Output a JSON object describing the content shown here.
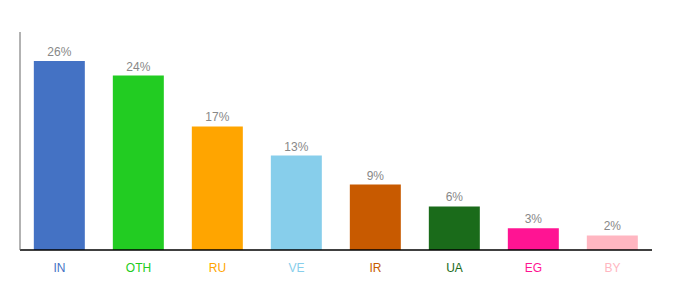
{
  "chart_data": {
    "type": "bar",
    "categories": [
      "IN",
      "OTH",
      "RU",
      "VE",
      "IR",
      "UA",
      "EG",
      "BY"
    ],
    "values": [
      26,
      24,
      17,
      13,
      9,
      6,
      3,
      2
    ],
    "value_labels": [
      "26%",
      "24%",
      "17%",
      "13%",
      "9%",
      "6%",
      "3%",
      "2%"
    ],
    "colors": [
      "#4472C4",
      "#22CC22",
      "#FFA500",
      "#87CEEB",
      "#C85A00",
      "#1A6B1A",
      "#FF1493",
      "#FFB6C1"
    ],
    "ylim": [
      0,
      30
    ],
    "data_labels": true,
    "tick_labels": "x",
    "grid": false
  }
}
